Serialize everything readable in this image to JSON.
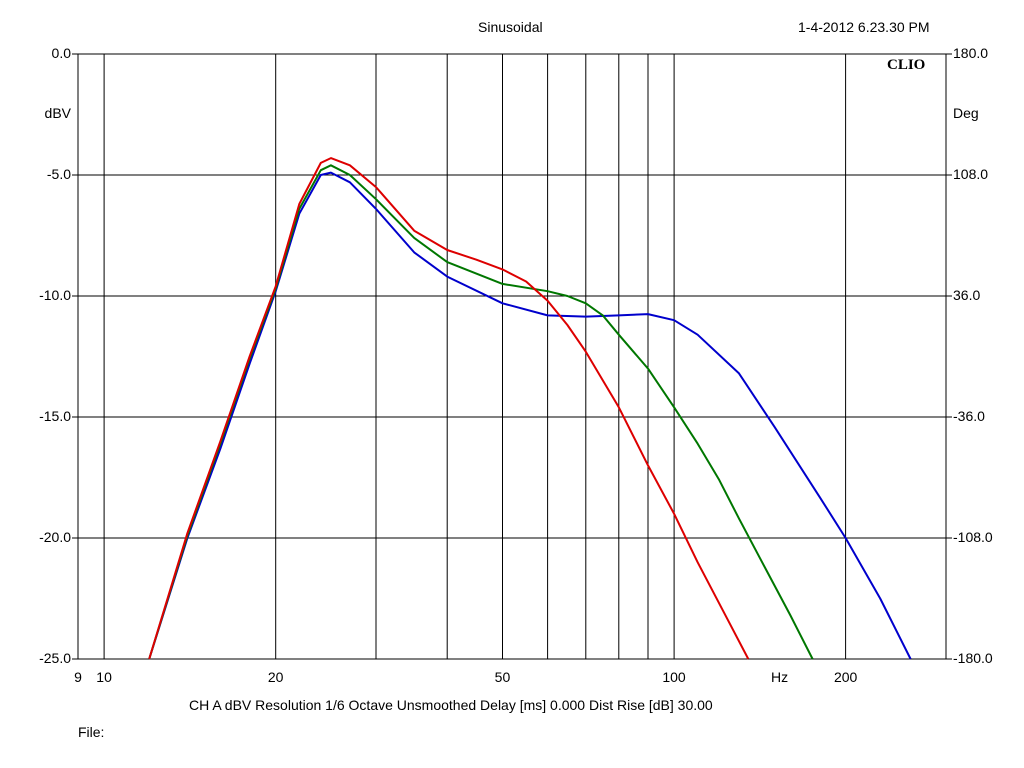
{
  "header": {
    "title": "Sinusoidal",
    "datetime": "1-4-2012 6.23.30 PM",
    "brand": "CLIO"
  },
  "footer": {
    "info": "CH A   dBV   Resolution 1/6 Octave   Unsmoothed   Delay [ms] 0.000   Dist Rise [dB] 30.00",
    "file_label": "File:"
  },
  "chart_data": {
    "type": "line",
    "xscale": "log",
    "xlim": [
      9,
      300
    ],
    "ylim": [
      -25,
      0
    ],
    "y2lim": [
      -180,
      180
    ],
    "grid": true,
    "ylabel": "dBV",
    "y2label": "Deg",
    "xunit": "Hz",
    "xticks": [
      {
        "value": 9,
        "label": "9"
      },
      {
        "value": 10,
        "label": "10"
      },
      {
        "value": 20,
        "label": "20"
      },
      {
        "value": 50,
        "label": "50"
      },
      {
        "value": 100,
        "label": "100"
      },
      {
        "value": 200,
        "label": "200"
      }
    ],
    "xgrid": [
      10,
      20,
      30,
      40,
      50,
      60,
      70,
      80,
      90,
      100,
      200
    ],
    "yticks": [
      {
        "value": 0,
        "label": "0.0"
      },
      {
        "value": -5,
        "label": "-5.0"
      },
      {
        "value": -10,
        "label": "-10.0"
      },
      {
        "value": -15,
        "label": "-15.0"
      },
      {
        "value": -20,
        "label": "-20.0"
      },
      {
        "value": -25,
        "label": "-25.0"
      }
    ],
    "y2ticks": [
      {
        "value": 180,
        "label": "180.0"
      },
      {
        "value": 108,
        "label": "108.0"
      },
      {
        "value": 36,
        "label": "36.0"
      },
      {
        "value": -36,
        "label": "-36.0"
      },
      {
        "value": -108,
        "label": "-108.0"
      },
      {
        "value": -180,
        "label": "-180.0"
      }
    ],
    "series": [
      {
        "color": "#0000cc",
        "points": [
          [
            12,
            -25
          ],
          [
            14,
            -20
          ],
          [
            16,
            -16.3
          ],
          [
            18,
            -12.8
          ],
          [
            20,
            -9.8
          ],
          [
            22,
            -6.6
          ],
          [
            24,
            -5.0
          ],
          [
            25,
            -4.9
          ],
          [
            27,
            -5.3
          ],
          [
            30,
            -6.4
          ],
          [
            35,
            -8.2
          ],
          [
            40,
            -9.2
          ],
          [
            50,
            -10.3
          ],
          [
            60,
            -10.8
          ],
          [
            70,
            -10.85
          ],
          [
            80,
            -10.8
          ],
          [
            90,
            -10.75
          ],
          [
            100,
            -11.0
          ],
          [
            110,
            -11.6
          ],
          [
            130,
            -13.2
          ],
          [
            150,
            -15.4
          ],
          [
            180,
            -18.3
          ],
          [
            200,
            -20.0
          ],
          [
            230,
            -22.5
          ],
          [
            260,
            -25
          ]
        ]
      },
      {
        "color": "#007700",
        "points": [
          [
            12,
            -25
          ],
          [
            14,
            -19.9
          ],
          [
            16,
            -16.1
          ],
          [
            18,
            -12.6
          ],
          [
            20,
            -9.7
          ],
          [
            22,
            -6.4
          ],
          [
            24,
            -4.8
          ],
          [
            25,
            -4.6
          ],
          [
            27,
            -5.0
          ],
          [
            30,
            -6.0
          ],
          [
            35,
            -7.6
          ],
          [
            40,
            -8.6
          ],
          [
            50,
            -9.5
          ],
          [
            60,
            -9.8
          ],
          [
            65,
            -10.0
          ],
          [
            70,
            -10.3
          ],
          [
            75,
            -10.8
          ],
          [
            80,
            -11.6
          ],
          [
            90,
            -13.0
          ],
          [
            100,
            -14.6
          ],
          [
            110,
            -16.1
          ],
          [
            120,
            -17.6
          ],
          [
            130,
            -19.2
          ],
          [
            145,
            -21.3
          ],
          [
            160,
            -23.2
          ],
          [
            175,
            -25
          ]
        ]
      },
      {
        "color": "#dd0000",
        "points": [
          [
            12,
            -25
          ],
          [
            14,
            -19.8
          ],
          [
            16,
            -16.0
          ],
          [
            18,
            -12.5
          ],
          [
            20,
            -9.6
          ],
          [
            22,
            -6.2
          ],
          [
            24,
            -4.5
          ],
          [
            25,
            -4.3
          ],
          [
            27,
            -4.6
          ],
          [
            30,
            -5.5
          ],
          [
            35,
            -7.3
          ],
          [
            40,
            -8.1
          ],
          [
            45,
            -8.5
          ],
          [
            50,
            -8.9
          ],
          [
            55,
            -9.4
          ],
          [
            60,
            -10.2
          ],
          [
            65,
            -11.2
          ],
          [
            70,
            -12.3
          ],
          [
            80,
            -14.6
          ],
          [
            90,
            -17.0
          ],
          [
            100,
            -19.0
          ],
          [
            110,
            -21.0
          ],
          [
            125,
            -23.5
          ],
          [
            135,
            -25
          ]
        ]
      }
    ]
  }
}
